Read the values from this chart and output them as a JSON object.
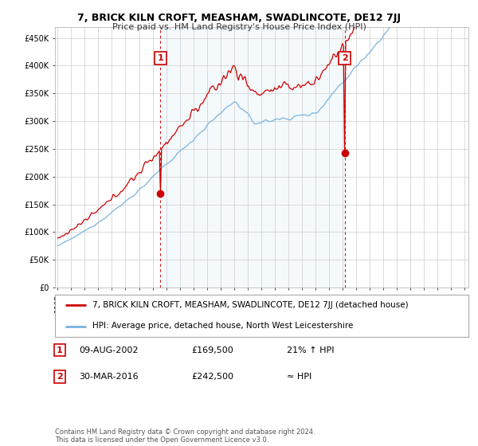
{
  "title": "7, BRICK KILN CROFT, MEASHAM, SWADLINCOTE, DE12 7JJ",
  "subtitle": "Price paid vs. HM Land Registry's House Price Index (HPI)",
  "legend_line1": "7, BRICK KILN CROFT, MEASHAM, SWADLINCOTE, DE12 7JJ (detached house)",
  "legend_line2": "HPI: Average price, detached house, North West Leicestershire",
  "annotation1_label": "1",
  "annotation1_date": "09-AUG-2002",
  "annotation1_price": "£169,500",
  "annotation1_hpi": "21% ↑ HPI",
  "annotation2_label": "2",
  "annotation2_date": "30-MAR-2016",
  "annotation2_price": "£242,500",
  "annotation2_hpi": "≈ HPI",
  "footnote": "Contains HM Land Registry data © Crown copyright and database right 2024.\nThis data is licensed under the Open Government Licence v3.0.",
  "hpi_color": "#7ab3e0",
  "hpi_fill_color": "#d6e8f7",
  "price_color": "#cc0000",
  "vline_color": "#cc0000",
  "annotation_box_color": "#cc0000",
  "ylim": [
    0,
    470000
  ],
  "yticks": [
    0,
    50000,
    100000,
    150000,
    200000,
    250000,
    300000,
    350000,
    400000,
    450000
  ],
  "background_color": "#ffffff",
  "grid_color": "#cccccc",
  "t1_year_float": 2002.583,
  "t2_year_float": 2016.208,
  "t1_price": 169500,
  "t2_price": 242500
}
